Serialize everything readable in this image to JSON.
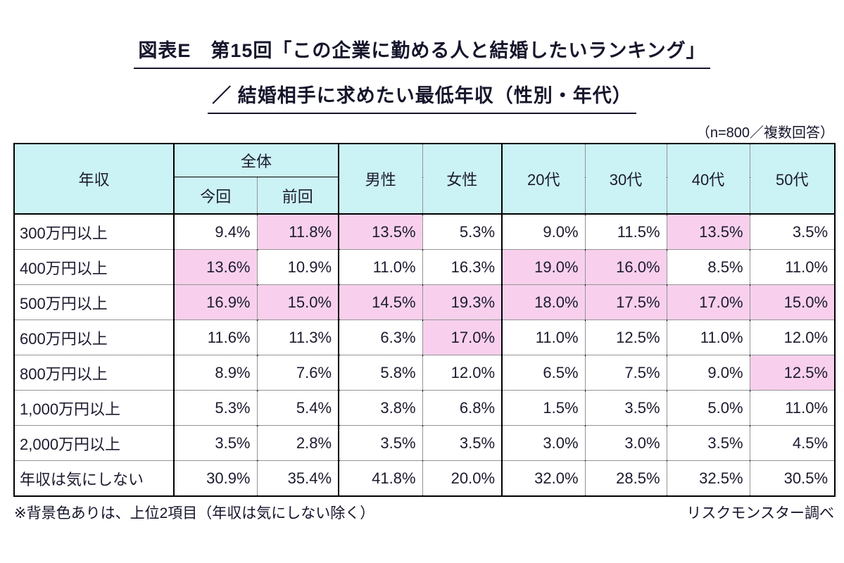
{
  "title": {
    "line1": "図表E　第15回「この企業に勤める人と結婚したいランキング」",
    "line2": "／ 結婚相手に求めたい最低年収（性別・年代）"
  },
  "sample_note": "（n=800／複数回答）",
  "colors": {
    "header_bg": "#cbf2f5",
    "highlight_bg": "#f8d0ed",
    "text": "#1b1b2f",
    "border": "#000000"
  },
  "table": {
    "corner_label": "年収",
    "group_label": "全体",
    "sub_headers": [
      "今回",
      "前回"
    ],
    "col_headers": [
      "男性",
      "女性",
      "20代",
      "30代",
      "40代",
      "50代"
    ],
    "rows": [
      {
        "label": "300万円以上",
        "values": [
          "9.4%",
          "11.8%",
          "13.5%",
          "5.3%",
          "9.0%",
          "11.5%",
          "13.5%",
          "3.5%"
        ],
        "highlight": [
          false,
          true,
          true,
          false,
          false,
          false,
          true,
          false
        ]
      },
      {
        "label": "400万円以上",
        "values": [
          "13.6%",
          "10.9%",
          "11.0%",
          "16.3%",
          "19.0%",
          "16.0%",
          "8.5%",
          "11.0%"
        ],
        "highlight": [
          true,
          false,
          false,
          false,
          true,
          true,
          false,
          false
        ]
      },
      {
        "label": "500万円以上",
        "values": [
          "16.9%",
          "15.0%",
          "14.5%",
          "19.3%",
          "18.0%",
          "17.5%",
          "17.0%",
          "15.0%"
        ],
        "highlight": [
          true,
          true,
          true,
          true,
          true,
          true,
          true,
          true
        ]
      },
      {
        "label": "600万円以上",
        "values": [
          "11.6%",
          "11.3%",
          "6.3%",
          "17.0%",
          "11.0%",
          "12.5%",
          "11.0%",
          "12.0%"
        ],
        "highlight": [
          false,
          false,
          false,
          true,
          false,
          false,
          false,
          false
        ]
      },
      {
        "label": "800万円以上",
        "values": [
          "8.9%",
          "7.6%",
          "5.8%",
          "12.0%",
          "6.5%",
          "7.5%",
          "9.0%",
          "12.5%"
        ],
        "highlight": [
          false,
          false,
          false,
          false,
          false,
          false,
          false,
          true
        ]
      },
      {
        "label": "1,000万円以上",
        "values": [
          "5.3%",
          "5.4%",
          "3.8%",
          "6.8%",
          "1.5%",
          "3.5%",
          "5.0%",
          "11.0%"
        ],
        "highlight": [
          false,
          false,
          false,
          false,
          false,
          false,
          false,
          false
        ]
      },
      {
        "label": "2,000万円以上",
        "values": [
          "3.5%",
          "2.8%",
          "3.5%",
          "3.5%",
          "3.0%",
          "3.0%",
          "3.5%",
          "4.5%"
        ],
        "highlight": [
          false,
          false,
          false,
          false,
          false,
          false,
          false,
          false
        ]
      },
      {
        "label": "年収は気にしない",
        "values": [
          "30.9%",
          "35.4%",
          "41.8%",
          "20.0%",
          "32.0%",
          "28.5%",
          "32.5%",
          "30.5%"
        ],
        "highlight": [
          false,
          false,
          false,
          false,
          false,
          false,
          false,
          false
        ]
      }
    ]
  },
  "footer": {
    "note": "※背景色ありは、上位2項目（年収は気にしない除く）",
    "source": "リスクモンスター調べ"
  }
}
